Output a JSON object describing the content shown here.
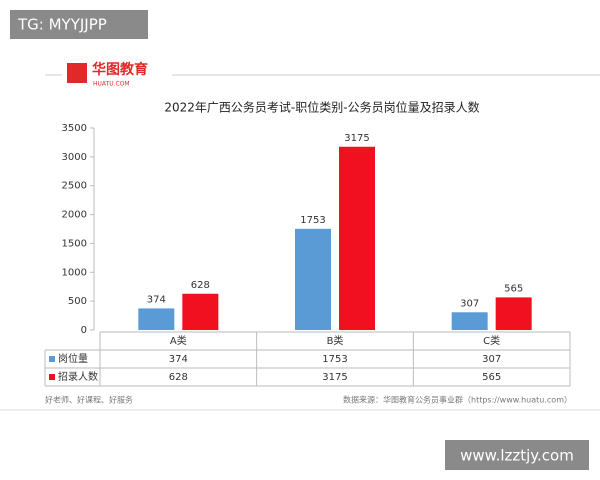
{
  "overlay": "TG: MYYJJPP",
  "logo": {
    "name": "华图教育",
    "site": "HUATU.COM"
  },
  "chart_data": {
    "type": "bar",
    "title": "2022年广西公务员考试-职位类别-公务员岗位量及招录人数",
    "categories": [
      "A类",
      "B类",
      "C类"
    ],
    "series": [
      {
        "name": "岗位量",
        "color": "#5b9bd5",
        "values": [
          374,
          1753,
          307
        ]
      },
      {
        "name": "招录人数",
        "color": "#f01020",
        "values": [
          628,
          3175,
          565
        ]
      }
    ],
    "ylim": [
      0,
      3500
    ],
    "yticks": [
      0,
      500,
      1000,
      1500,
      2000,
      2500,
      3000,
      3500
    ],
    "data_table": true
  },
  "footer": {
    "slogan": "好老师、好课程、好服务",
    "source": "数据来源：华图教育公务员事业群（https://www.huatu.com）"
  },
  "site_mark": "www.lzztjy.com"
}
